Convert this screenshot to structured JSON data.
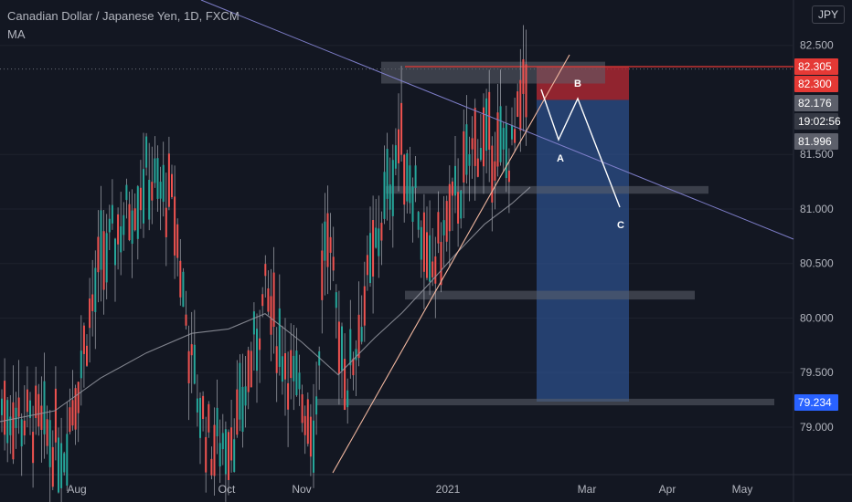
{
  "header": {
    "symbol_title": "Canadian Dollar / Japanese Yen, 1D, FXCM",
    "indicator_label": "MA",
    "currency_button": "JPY"
  },
  "colors": {
    "background": "#131722",
    "grid": "#1e222d",
    "up_candle": "#26a69a",
    "down_candle": "#ef5350",
    "ma_line": "#9598a1",
    "trendline_up": "#f2b8a0",
    "trendline_down": "#7e7ec9",
    "zone": "#5d606b",
    "stop_zone": "#b22833",
    "target_zone": "#2c4f8a",
    "resistance_line": "#e53935"
  },
  "chart_data": {
    "type": "candlestick",
    "title": "Canadian Dollar / Japanese Yen, 1D, FXCM",
    "ylim": [
      78.6,
      82.85
    ],
    "y_ticks": [
      "82.500",
      "81.500",
      "81.000",
      "80.500",
      "80.000",
      "79.500",
      "79.000"
    ],
    "x_ticks": [
      "Aug",
      "Oct",
      "Nov",
      "2021",
      "Mar",
      "Apr",
      "May"
    ],
    "price_labels": [
      {
        "value": "82.305",
        "kind": "resistance"
      },
      {
        "value": "82.300",
        "kind": "last"
      },
      {
        "value": "82.176",
        "kind": "marker"
      },
      {
        "value": "19:02:56",
        "kind": "countdown"
      },
      {
        "value": "81.996",
        "kind": "marker"
      },
      {
        "value": "79.234",
        "kind": "target"
      }
    ],
    "wave_labels": [
      "A",
      "B",
      "C"
    ],
    "levels": {
      "resistance": 82.305,
      "last_price": 82.3,
      "support_zones": [
        [
          82.15,
          82.35
        ],
        [
          81.14,
          81.21
        ],
        [
          80.17,
          80.25
        ],
        [
          79.2,
          79.26
        ]
      ],
      "stop_zone": [
        82.0,
        82.305
      ],
      "target_zone": [
        79.234,
        82.0
      ]
    }
  }
}
